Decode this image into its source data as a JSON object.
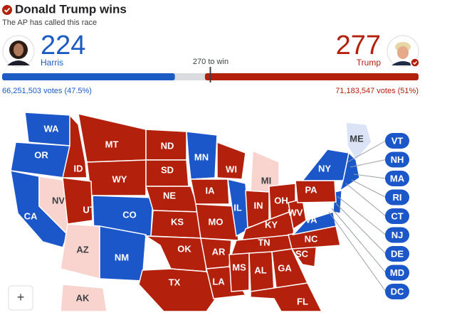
{
  "header": {
    "title": "Donald Trump wins",
    "subtitle": "The AP has called this race"
  },
  "candidates": [
    {
      "name": "Harris",
      "electoral_votes": 224,
      "popular_vote": "66,251,503 votes (47.5%)",
      "color": "#1a5bc4"
    },
    {
      "name": "Trump",
      "electoral_votes": 277,
      "popular_vote": "71,183,547 votes (51%)",
      "color": "#b3200c"
    }
  ],
  "threshold": {
    "value": 270,
    "label": "270 to win"
  },
  "map": {
    "states": [
      {
        "label": "WA",
        "color": "#1c57c9"
      },
      {
        "label": "OR",
        "color": "#1c57c9"
      },
      {
        "label": "CA",
        "color": "#1c57c9"
      },
      {
        "label": "NV",
        "color": "#f9d3cd"
      },
      {
        "label": "ID",
        "color": "#b3200c"
      },
      {
        "label": "MT",
        "color": "#b3200c"
      },
      {
        "label": "WY",
        "color": "#b3200c"
      },
      {
        "label": "UT",
        "color": "#b3200c"
      },
      {
        "label": "CO",
        "color": "#1c57c9"
      },
      {
        "label": "AZ",
        "color": "#f9d3cd"
      },
      {
        "label": "NM",
        "color": "#1c57c9"
      },
      {
        "label": "ND",
        "color": "#b3200c"
      },
      {
        "label": "SD",
        "color": "#b3200c"
      },
      {
        "label": "NE",
        "color": "#b3200c"
      },
      {
        "label": "KS",
        "color": "#b3200c"
      },
      {
        "label": "OK",
        "color": "#b3200c"
      },
      {
        "label": "TX",
        "color": "#b3200c"
      },
      {
        "label": "MN",
        "color": "#1c57c9"
      },
      {
        "label": "IA",
        "color": "#b3200c"
      },
      {
        "label": "MO",
        "color": "#b3200c"
      },
      {
        "label": "AR",
        "color": "#b3200c"
      },
      {
        "label": "LA",
        "color": "#b3200c"
      },
      {
        "label": "WI",
        "color": "#b3200c"
      },
      {
        "label": "IL",
        "color": "#1c57c9"
      },
      {
        "label": "MI",
        "color": "#f9d3cd"
      },
      {
        "label": "IN",
        "color": "#b3200c"
      },
      {
        "label": "OH",
        "color": "#b3200c"
      },
      {
        "label": "KY",
        "color": "#b3200c"
      },
      {
        "label": "TN",
        "color": "#b3200c"
      },
      {
        "label": "MS",
        "color": "#b3200c"
      },
      {
        "label": "AL",
        "color": "#b3200c"
      },
      {
        "label": "GA",
        "color": "#b3200c"
      },
      {
        "label": "FL",
        "color": "#b3200c"
      },
      {
        "label": "SC",
        "color": "#b3200c"
      },
      {
        "label": "NC",
        "color": "#b3200c"
      },
      {
        "label": "VA",
        "color": "#1c57c9"
      },
      {
        "label": "WV",
        "color": "#b3200c"
      },
      {
        "label": "PA",
        "color": "#b3200c"
      },
      {
        "label": "NY",
        "color": "#1c57c9"
      },
      {
        "label": "ME",
        "color": "#dbe4f7"
      },
      {
        "label": "AK",
        "color": "#f9d3cd"
      }
    ],
    "small_states": [
      {
        "label": "VT",
        "color": "#1c57c9"
      },
      {
        "label": "NH",
        "color": "#1c57c9"
      },
      {
        "label": "MA",
        "color": "#1c57c9"
      },
      {
        "label": "RI",
        "color": "#1c57c9"
      },
      {
        "label": "CT",
        "color": "#1c57c9"
      },
      {
        "label": "NJ",
        "color": "#1c57c9"
      },
      {
        "label": "DE",
        "color": "#1c57c9"
      },
      {
        "label": "MD",
        "color": "#1c57c9"
      },
      {
        "label": "DC",
        "color": "#1c57c9"
      }
    ],
    "zoom_button": "+"
  }
}
